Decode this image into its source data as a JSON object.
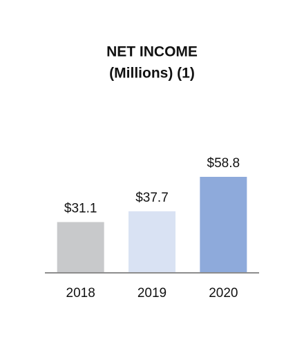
{
  "chart_data": {
    "type": "bar",
    "title": "NET INCOME",
    "subtitle": "(Millions) (1)",
    "categories": [
      "2018",
      "2019",
      "2020"
    ],
    "values": [
      31.1,
      37.7,
      58.8
    ],
    "value_labels": [
      "$31.1",
      "$37.7",
      "$58.8"
    ],
    "colors": [
      "#c8c9cb",
      "#d9e2f3",
      "#8eaadb"
    ]
  }
}
